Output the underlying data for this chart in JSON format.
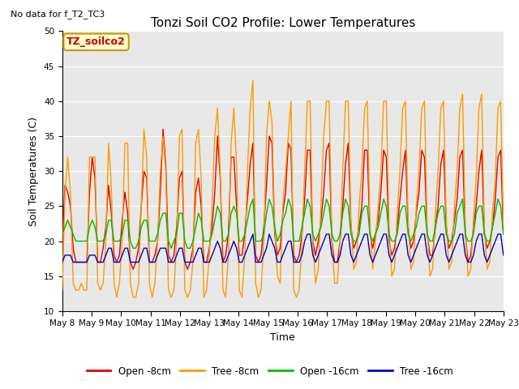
{
  "title": "Tonzi Soil CO2 Profile: Lower Temperatures",
  "top_left_text": "No data for f_T2_TC3",
  "legend_box_text": "TZ_soilco2",
  "xlabel": "Time",
  "ylabel": "Soil Temperatures (C)",
  "ylim": [
    10,
    50
  ],
  "yticks": [
    10,
    15,
    20,
    25,
    30,
    35,
    40,
    45,
    50
  ],
  "x_labels": [
    "May 8",
    "May 9",
    "May 10",
    "May 11",
    "May 12",
    "May 13",
    "May 14",
    "May 15",
    "May 16",
    "May 17",
    "May 18",
    "May 19",
    "May 20",
    "May 21",
    "May 22",
    "May 23"
  ],
  "bg_color": "#e8e8e8",
  "fig_bg": "#ffffff",
  "line_colors": {
    "open8": "#dd0000",
    "tree8": "#ff9900",
    "open16": "#00bb00",
    "tree16": "#0000cc"
  },
  "legend_entries": [
    "Open -8cm",
    "Tree -8cm",
    "Open -16cm",
    "Tree -16cm"
  ],
  "open8": [
    19,
    28,
    27,
    25,
    19,
    17,
    17,
    17,
    17,
    17,
    27,
    32,
    29,
    17,
    17,
    19,
    22,
    28,
    24,
    18,
    17,
    18,
    23,
    27,
    24,
    17,
    16,
    17,
    19,
    25,
    30,
    29,
    17,
    17,
    18,
    20,
    27,
    36,
    31,
    18,
    17,
    18,
    22,
    29,
    30,
    17,
    16,
    17,
    19,
    27,
    29,
    25,
    17,
    17,
    19,
    22,
    27,
    35,
    29,
    17,
    18,
    21,
    32,
    32,
    25,
    18,
    18,
    21,
    26,
    31,
    34,
    18,
    17,
    18,
    22,
    28,
    35,
    34,
    21,
    18,
    19,
    24,
    27,
    34,
    33,
    18,
    17,
    18,
    21,
    26,
    33,
    33,
    20,
    18,
    20,
    23,
    27,
    33,
    34,
    20,
    17,
    17,
    20,
    25,
    31,
    34,
    22,
    19,
    20,
    22,
    25,
    33,
    33,
    21,
    19,
    21,
    23,
    27,
    33,
    32,
    20,
    18,
    19,
    22,
    26,
    30,
    33,
    22,
    19,
    20,
    24,
    27,
    33,
    32,
    21,
    18,
    18,
    22,
    25,
    31,
    33,
    22,
    19,
    20,
    23,
    26,
    32,
    33,
    21,
    17,
    18,
    22,
    25,
    30,
    33,
    21,
    19,
    20,
    22,
    26,
    32,
    33,
    21
  ],
  "tree8": [
    13,
    27,
    32,
    27,
    14,
    13,
    13,
    14,
    13,
    13,
    32,
    32,
    32,
    14,
    13,
    14,
    20,
    34,
    28,
    14,
    12,
    14,
    20,
    34,
    34,
    14,
    12,
    12,
    14,
    25,
    36,
    32,
    14,
    12,
    14,
    20,
    30,
    35,
    30,
    13,
    12,
    13,
    20,
    35,
    36,
    13,
    12,
    13,
    17,
    34,
    36,
    29,
    12,
    13,
    18,
    25,
    35,
    39,
    30,
    13,
    12,
    18,
    34,
    39,
    31,
    13,
    12,
    18,
    30,
    39,
    43,
    14,
    12,
    13,
    20,
    35,
    40,
    37,
    22,
    15,
    14,
    25,
    30,
    35,
    40,
    13,
    12,
    13,
    20,
    30,
    40,
    40,
    20,
    14,
    16,
    25,
    35,
    40,
    40,
    20,
    14,
    14,
    20,
    30,
    40,
    40,
    23,
    16,
    17,
    25,
    30,
    39,
    40,
    22,
    16,
    20,
    25,
    30,
    40,
    40,
    22,
    15,
    16,
    24,
    30,
    39,
    40,
    23,
    16,
    17,
    25,
    30,
    39,
    40,
    22,
    15,
    16,
    24,
    30,
    39,
    40,
    23,
    16,
    17,
    25,
    30,
    39,
    41,
    22,
    15,
    16,
    23,
    29,
    39,
    41,
    22,
    16,
    17,
    24,
    29,
    39,
    40,
    22
  ],
  "open16": [
    21,
    22,
    23,
    22,
    21,
    20,
    20,
    20,
    20,
    20,
    22,
    23,
    22,
    20,
    20,
    20,
    21,
    23,
    23,
    20,
    20,
    20,
    21,
    23,
    23,
    20,
    19,
    19,
    20,
    22,
    23,
    23,
    20,
    20,
    20,
    21,
    23,
    24,
    24,
    20,
    19,
    20,
    21,
    24,
    24,
    20,
    19,
    19,
    20,
    22,
    24,
    23,
    20,
    20,
    20,
    21,
    23,
    25,
    24,
    20,
    20,
    21,
    24,
    25,
    24,
    20,
    20,
    21,
    23,
    25,
    26,
    20,
    20,
    20,
    21,
    24,
    26,
    25,
    22,
    20,
    21,
    23,
    24,
    26,
    25,
    20,
    20,
    20,
    22,
    24,
    26,
    25,
    21,
    20,
    21,
    22,
    24,
    26,
    25,
    21,
    20,
    20,
    21,
    24,
    26,
    25,
    21,
    20,
    20,
    21,
    24,
    25,
    25,
    21,
    20,
    21,
    22,
    24,
    26,
    25,
    21,
    20,
    20,
    21,
    24,
    25,
    25,
    21,
    20,
    21,
    22,
    24,
    25,
    25,
    21,
    20,
    20,
    22,
    24,
    25,
    25,
    21,
    20,
    20,
    21,
    24,
    25,
    26,
    21,
    20,
    20,
    21,
    24,
    25,
    25,
    21,
    20,
    20,
    22,
    24,
    26,
    25,
    21
  ],
  "tree16": [
    17,
    18,
    18,
    18,
    17,
    17,
    17,
    17,
    17,
    17,
    18,
    18,
    18,
    17,
    17,
    17,
    18,
    19,
    19,
    17,
    17,
    17,
    18,
    19,
    19,
    17,
    17,
    17,
    17,
    18,
    19,
    19,
    17,
    17,
    17,
    18,
    19,
    19,
    19,
    17,
    17,
    17,
    18,
    19,
    19,
    17,
    17,
    17,
    17,
    18,
    19,
    19,
    17,
    17,
    17,
    18,
    19,
    20,
    19,
    17,
    17,
    18,
    19,
    20,
    19,
    17,
    17,
    18,
    19,
    20,
    21,
    17,
    17,
    17,
    18,
    19,
    21,
    20,
    19,
    17,
    17,
    18,
    19,
    20,
    20,
    17,
    17,
    17,
    18,
    20,
    21,
    21,
    18,
    17,
    18,
    19,
    20,
    21,
    21,
    18,
    17,
    17,
    18,
    20,
    21,
    21,
    18,
    17,
    18,
    19,
    20,
    21,
    21,
    18,
    17,
    18,
    19,
    20,
    21,
    21,
    18,
    17,
    18,
    19,
    20,
    21,
    21,
    18,
    17,
    18,
    19,
    20,
    21,
    21,
    18,
    17,
    18,
    19,
    20,
    21,
    21,
    18,
    17,
    18,
    19,
    20,
    21,
    21,
    18,
    17,
    17,
    18,
    20,
    21,
    21,
    18,
    17,
    18,
    19,
    20,
    21,
    21,
    18
  ]
}
